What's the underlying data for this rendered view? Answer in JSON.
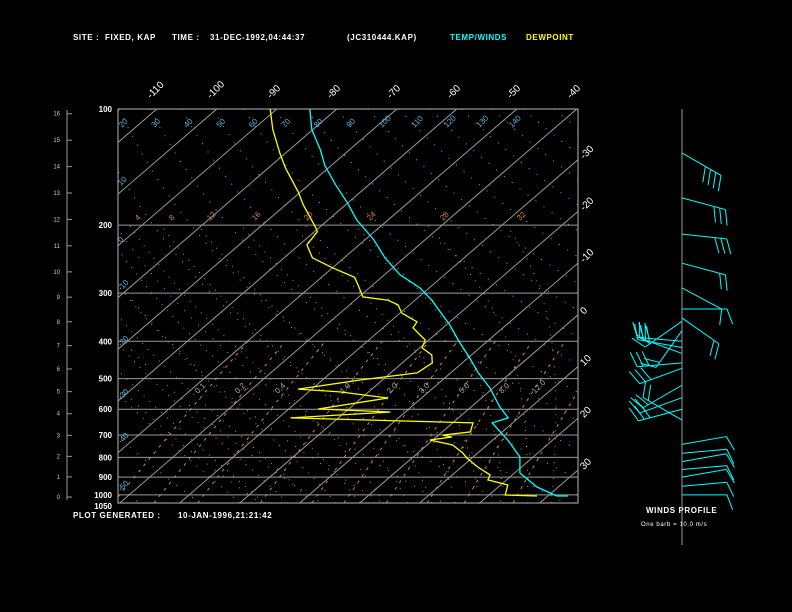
{
  "header": {
    "site_label": "SITE :",
    "site_value": "FIXED, KAP",
    "time_label": "TIME :",
    "time_value": "31-DEC-1992,04:44:37",
    "file": "(JC310444.KAP)",
    "legend_temp": "TEMP/WINDS",
    "legend_dew": "DEWPOINT"
  },
  "footer": {
    "generated_label": "PLOT GENERATED :",
    "generated_value": "10-JAN-1996,21:21:42"
  },
  "winds_panel": {
    "title": "WINDS PROFILE",
    "note": "One barb = 10.0 m/s"
  },
  "colors": {
    "temperature": "#00ffff",
    "dewpoint": "#ffff00",
    "grid": "#9a9a9a",
    "dry_adiabat": "#5ab4e6",
    "moist_adiabat": "#d2824b",
    "mixing_ratio": "#d2824b",
    "text": "#ffffff"
  },
  "chart_data": {
    "type": "line",
    "subtype": "skew-T log-p",
    "pressure_levels_hPa": [
      100,
      200,
      300,
      400,
      500,
      600,
      700,
      800,
      900,
      1000,
      1050
    ],
    "pressure_tick_labels": [
      "100",
      "200",
      "300",
      "400",
      "500",
      "600",
      "700",
      "800",
      "900",
      "1000",
      "1050"
    ],
    "height_ticks_km": [
      0,
      1,
      2,
      3,
      4,
      5,
      6,
      7,
      8,
      9,
      10,
      11,
      12,
      13,
      14,
      15,
      16
    ],
    "isotherm_top_labels": [
      "-110",
      "-100",
      "-90",
      "-80",
      "-70",
      "-60",
      "-50",
      "-40"
    ],
    "isotherm_top_values": [
      -110,
      -100,
      -90,
      -80,
      -70,
      -60,
      -50,
      -40
    ],
    "isotherm_right_labels": [
      "-30",
      "-20",
      "-10",
      "0",
      "10",
      "20",
      "30"
    ],
    "isotherm_right_values": [
      -30,
      -20,
      -10,
      0,
      10,
      20,
      30
    ],
    "pressure_range_hPa": [
      100,
      1050
    ],
    "dry_adiabat_top_labels": [
      "20",
      "30",
      "40",
      "50",
      "60",
      "70",
      "80",
      "90",
      "100",
      "110",
      "120",
      "130",
      "140"
    ],
    "dry_adiabat_left_labels": [
      "10",
      "0",
      "-10",
      "-20",
      "-30",
      "-40",
      "-50"
    ],
    "moist_adiabat_labels": [
      "4",
      "8",
      "12",
      "16",
      "20",
      "24",
      "28",
      "32"
    ],
    "mixing_ratio_labels": [
      "0.1",
      "0.2",
      "0.4",
      "1.0",
      "2.0",
      "3.0",
      "5.0",
      "8.0",
      "12.0"
    ],
    "series": [
      {
        "name": "TEMP/WINDS",
        "points": [
          [
            100,
            -84.5
          ],
          [
            113,
            -80.2
          ],
          [
            128,
            -74.7
          ],
          [
            140,
            -71.1
          ],
          [
            157,
            -65.6
          ],
          [
            175,
            -60.1
          ],
          [
            194,
            -55.2
          ],
          [
            218,
            -48.6
          ],
          [
            243,
            -43.2
          ],
          [
            269,
            -37.4
          ],
          [
            291,
            -31.5
          ],
          [
            313,
            -27.2
          ],
          [
            363,
            -19.4
          ],
          [
            397,
            -15.1
          ],
          [
            442,
            -9.7
          ],
          [
            483,
            -5.4
          ],
          [
            529,
            -0.5
          ],
          [
            592,
            4.8
          ],
          [
            632,
            8.3
          ],
          [
            651,
            6.6
          ],
          [
            721,
            12.5
          ],
          [
            798,
            17.8
          ],
          [
            878,
            20.9
          ],
          [
            954,
            26.4
          ],
          [
            1007,
            31.5
          ],
          [
            1007,
            33.4
          ]
        ]
      },
      {
        "name": "DEWPOINT",
        "points": [
          [
            100,
            -91.1
          ],
          [
            113,
            -86.7
          ],
          [
            130,
            -81
          ],
          [
            142,
            -77.2
          ],
          [
            164,
            -70.4
          ],
          [
            177,
            -67.1
          ],
          [
            202,
            -60.8
          ],
          [
            208,
            -59.5
          ],
          [
            225,
            -58.7
          ],
          [
            243,
            -55.3
          ],
          [
            258,
            -50
          ],
          [
            273,
            -44.5
          ],
          [
            286,
            -42.4
          ],
          [
            307,
            -39.3
          ],
          [
            313,
            -34.5
          ],
          [
            322,
            -31.9
          ],
          [
            338,
            -29.7
          ],
          [
            356,
            -25.5
          ],
          [
            369,
            -25
          ],
          [
            397,
            -20.6
          ],
          [
            416,
            -19.6
          ],
          [
            434,
            -16.6
          ],
          [
            455,
            -15
          ],
          [
            483,
            -15.6
          ],
          [
            504,
            -23.7
          ],
          [
            532,
            -32.3
          ],
          [
            541,
            -24.8
          ],
          [
            561,
            -15.6
          ],
          [
            599,
            -25.1
          ],
          [
            610,
            -12.5
          ],
          [
            632,
            -28
          ],
          [
            651,
            3.4
          ],
          [
            687,
            4.7
          ],
          [
            700,
            0.7
          ],
          [
            708,
            2.6
          ],
          [
            721,
            -0.5
          ],
          [
            743,
            4.3
          ],
          [
            779,
            7.5
          ],
          [
            803,
            9.2
          ],
          [
            847,
            12.7
          ],
          [
            888,
            16.3
          ],
          [
            915,
            16.9
          ],
          [
            943,
            21.2
          ],
          [
            1001,
            22.7
          ],
          [
            1007,
            28.2
          ]
        ]
      }
    ],
    "winds": [
      {
        "p": 130,
        "dir": 120,
        "speed": 40
      },
      {
        "p": 170,
        "dir": 105,
        "speed": 30
      },
      {
        "p": 211,
        "dir": 96,
        "speed": 30
      },
      {
        "p": 251,
        "dir": 105,
        "speed": 20
      },
      {
        "p": 291,
        "dir": 118,
        "speed": 10
      },
      {
        "p": 330,
        "dir": 90,
        "speed": 10
      },
      {
        "p": 348,
        "dir": 125,
        "speed": 20
      },
      {
        "p": 355,
        "dir": 235,
        "speed": 20
      },
      {
        "p": 375,
        "dir": 215,
        "speed": 20
      },
      {
        "p": 400,
        "dir": 275,
        "speed": 30
      },
      {
        "p": 415,
        "dir": 280,
        "speed": 30
      },
      {
        "p": 430,
        "dir": 290,
        "speed": 20
      },
      {
        "p": 455,
        "dir": 265,
        "speed": 30
      },
      {
        "p": 470,
        "dir": 250,
        "speed": 30
      },
      {
        "p": 520,
        "dir": 240,
        "speed": 20
      },
      {
        "p": 560,
        "dir": 250,
        "speed": 20
      },
      {
        "p": 600,
        "dir": 255,
        "speed": 30
      },
      {
        "p": 640,
        "dir": 300,
        "speed": 20
      },
      {
        "p": 740,
        "dir": 80,
        "speed": 10
      },
      {
        "p": 780,
        "dir": 85,
        "speed": 10
      },
      {
        "p": 820,
        "dir": 80,
        "speed": 10
      },
      {
        "p": 860,
        "dir": 85,
        "speed": 10
      },
      {
        "p": 900,
        "dir": 80,
        "speed": 10
      },
      {
        "p": 950,
        "dir": 85,
        "speed": 10
      },
      {
        "p": 1000,
        "dir": 90,
        "speed": 10
      }
    ]
  }
}
